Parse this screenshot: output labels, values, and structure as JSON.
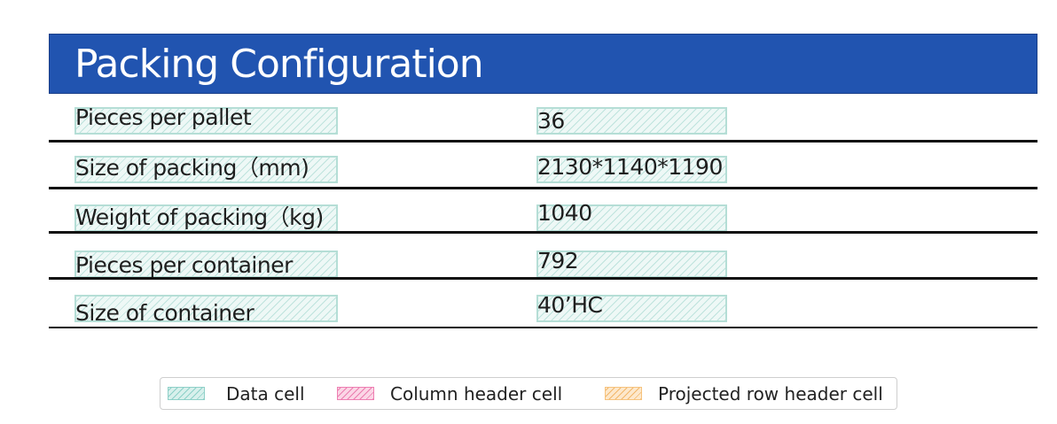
{
  "title": "Packing Configuration",
  "rows": [
    {
      "label": "Pieces per pallet",
      "value": "36"
    },
    {
      "label": "Size of packing（mm)",
      "value": "2130*1140*1190"
    },
    {
      "label": "Weight of packing（kg)",
      "value": "1040"
    },
    {
      "label": "Pieces per container",
      "value": "792"
    },
    {
      "label": "Size of container",
      "value": "40’HC"
    }
  ],
  "legend": {
    "data_cell": "Data cell",
    "column_header_cell": "Column header cell",
    "projected_row_header_cell": "Projected row header cell"
  },
  "colors": {
    "title_bar": "#2154b0",
    "data_cell": "#b5ded6",
    "column_header_cell": "#ee7fb2",
    "projected_row_header_cell": "#f6c37e"
  }
}
